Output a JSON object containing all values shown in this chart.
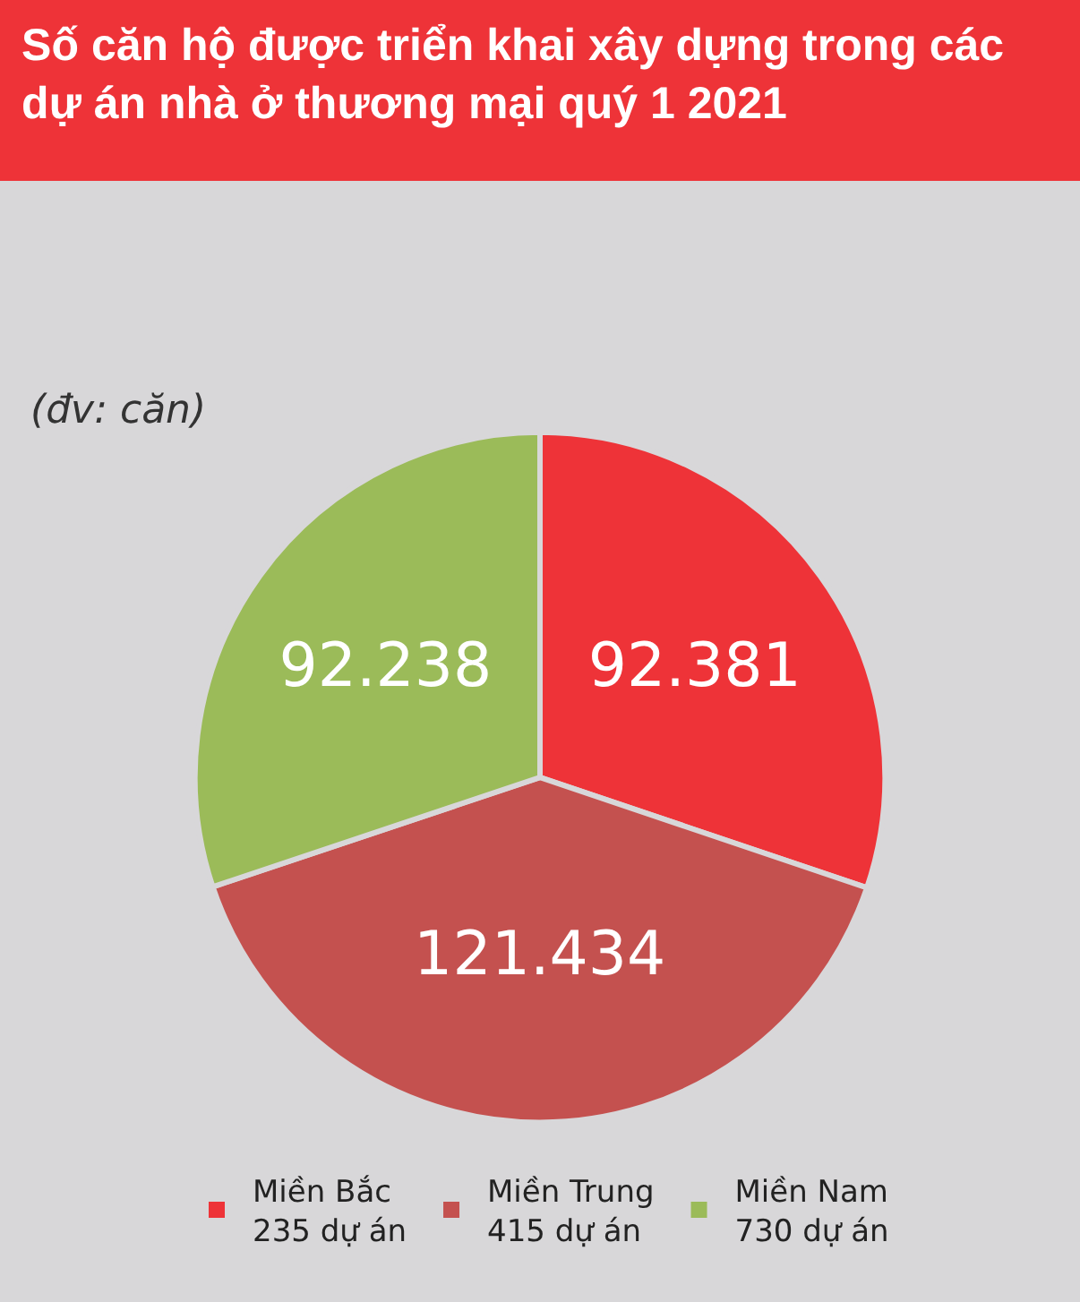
{
  "chart_data": {
    "type": "pie",
    "title": "Số căn hộ được triển khai xây dựng trong các\ndự án nhà ở thương mại quý 1 2021",
    "subtitle": "(đv: căn)",
    "categories": [
      "Miền Bắc\n235 dự án",
      "Miền Trung\n415 dự án",
      "Miền Nam\n730 dự án"
    ],
    "values": [
      92381,
      121434,
      92238
    ],
    "value_labels": [
      "92.381",
      "121.434",
      "92.238"
    ],
    "colors": [
      "#ee3338",
      "#c4514f",
      "#9bbb59"
    ],
    "legend": "bottom"
  }
}
